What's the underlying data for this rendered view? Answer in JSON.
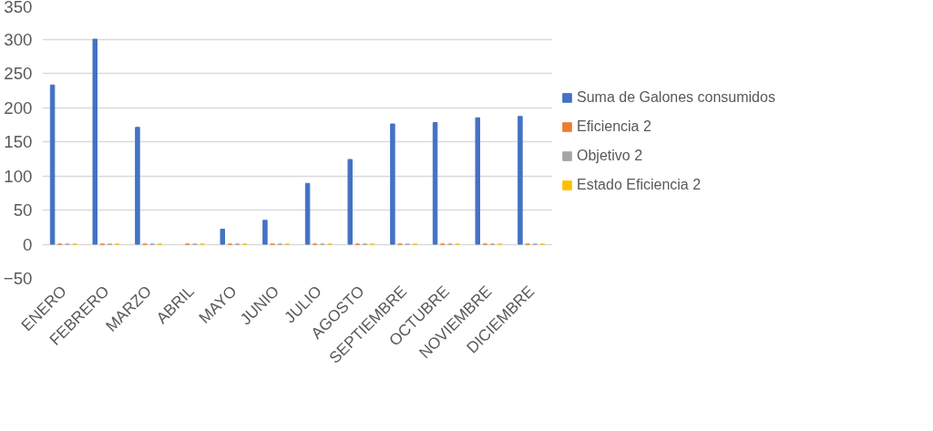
{
  "chart_data": {
    "type": "bar",
    "categories": [
      "ENERO",
      "FEBRERO",
      "MARZO",
      "ABRIL",
      "MAYO",
      "JUNIO",
      "JULIO",
      "AGOSTO",
      "SEPTIEMBRE",
      "OCTUBRE",
      "NOVIEMBRE",
      "DICIEMBRE"
    ],
    "series": [
      {
        "name": "Suma de Galones consumidos",
        "color": "#4472c4",
        "values": [
          233,
          300,
          171,
          null,
          22,
          35,
          89,
          124,
          176,
          178,
          185,
          187
        ]
      },
      {
        "name": "Eficiencia 2",
        "color": "#ed7d31",
        "values": [
          0,
          0,
          0,
          0,
          0,
          0,
          0,
          0,
          0,
          0,
          0,
          0
        ]
      },
      {
        "name": "Objetivo 2",
        "color": "#a5a5a5",
        "values": [
          0,
          0,
          0,
          0,
          0,
          0,
          0,
          0,
          0,
          0,
          0,
          0
        ]
      },
      {
        "name": "Estado Eficiencia 2",
        "color": "#ffc000",
        "values": [
          0,
          0,
          0,
          0,
          0,
          0,
          0,
          0,
          0,
          0,
          0,
          0
        ]
      }
    ],
    "ylim": [
      -50,
      350
    ],
    "yticks": [
      -50,
      0,
      50,
      100,
      150,
      200,
      250,
      300,
      350
    ],
    "grid": "y",
    "legend": "right"
  }
}
